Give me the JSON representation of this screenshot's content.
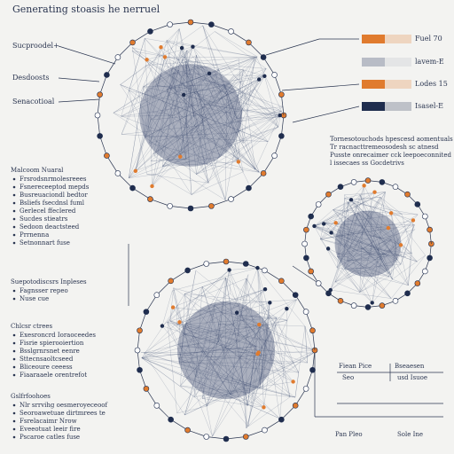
{
  "header": {
    "title": "Generating stoasis he nerruel"
  },
  "left_labels": [
    "Sucproodel+",
    "Desdoosts",
    "Senacotioal"
  ],
  "legend": [
    {
      "label": "Fuel 70",
      "color": "#e07b2e"
    },
    {
      "label": "lavem-E",
      "color": "#b8bcc6"
    },
    {
      "label": "Lodes 15",
      "color": "#e07b2e"
    },
    {
      "label": "Isasel-E",
      "color": "#1f2d4e"
    }
  ],
  "paragraph": [
    "Tornesotouchods hpescesd aomentuals",
    "Tr racnacttremeosodesh sc atnesd",
    "Pusste onrecaimer cck leepoeconnited",
    "l issecaes ss Gocdetrivs"
  ],
  "sections": [
    {
      "heading": "Malcoom Nuaral",
      "items": [
        "Frsrodsnrmolesreees",
        "Fsnereceeptod mepds",
        "Busreuaciondl bedtor",
        "Bsliefs fsecdnsl fuml",
        "Gerlecel ffeclered",
        "Sucdes stieatrs",
        "Sedoon deactsteed",
        "Prrnenna",
        "Setnonnart fuse"
      ]
    },
    {
      "heading": "Suepotodiscsrs Inpleses",
      "items": [
        "Fagnsser repeo",
        "Nuse cue"
      ]
    },
    {
      "heading": "Chlcsr ctrees",
      "items": [
        "Exesroncrd Ioraoceedes",
        "Fisrie spierooiertion",
        "Bsslgrnrsnet eenre",
        "Sttecnsaoltcseed",
        "Bliceoure ceeess",
        "Fiaaraaele orentrefot"
      ]
    },
    {
      "heading": "Gslfrfoohoes",
      "items": [
        "Nlr srrvihg oesmeroyeceoof",
        "Seoroawetuae dirtmrees te",
        "Fsrelacaimr Nrow",
        "Eveeotuat leeir fire",
        "Pscaroe catles fuse"
      ]
    }
  ],
  "chart_labels": [
    "Fiean Pice",
    "Bseaesen",
    "Seo",
    "usd Isuoe",
    "Pan Pleo",
    "Sole Ine"
  ]
}
